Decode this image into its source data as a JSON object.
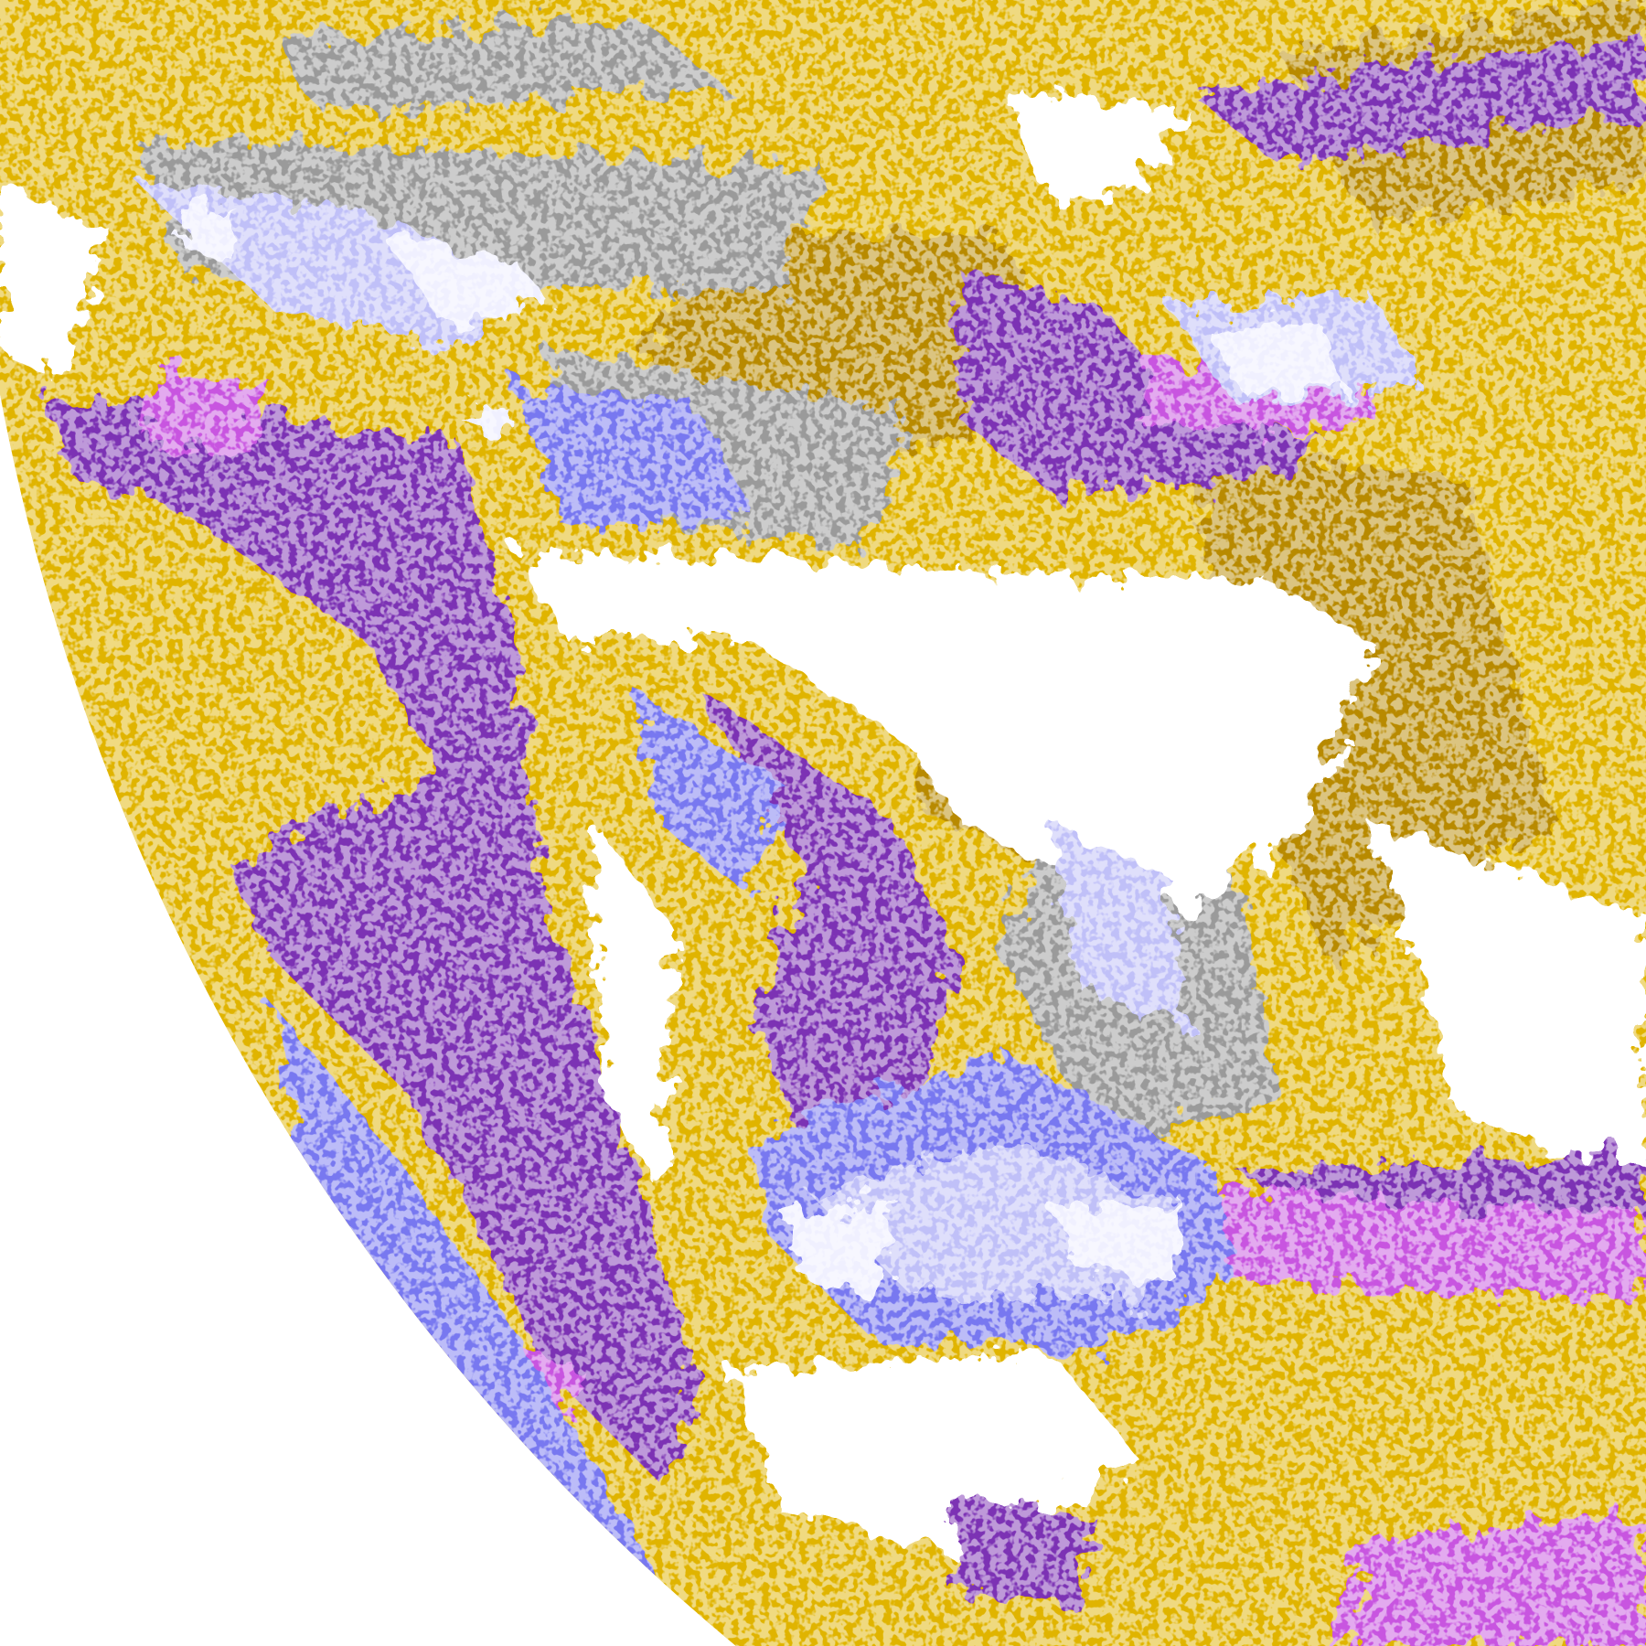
{
  "image": {
    "kind": "false-color satellite cloud classification",
    "background_color": "#ffffff",
    "palette": {
      "yellow": "#e0b400",
      "gold": "#b88a00",
      "purple": "#7b33b4",
      "magenta": "#c855e0",
      "periwinkle": "#7878f0",
      "lavender": "#c0c0f8",
      "pale": "#f0f0ff",
      "gray": "#9a9a9a",
      "clear": "#ffffff"
    },
    "regions": [
      {
        "name": "southern-ocean-purple-band",
        "color": "purple"
      },
      {
        "name": "upper-yellow-field",
        "color": "yellow"
      },
      {
        "name": "central-clear-area",
        "color": "clear"
      },
      {
        "name": "lower-swirl-system",
        "color": "periwinkle"
      },
      {
        "name": "equatorial-magenta-band",
        "color": "magenta"
      }
    ]
  }
}
